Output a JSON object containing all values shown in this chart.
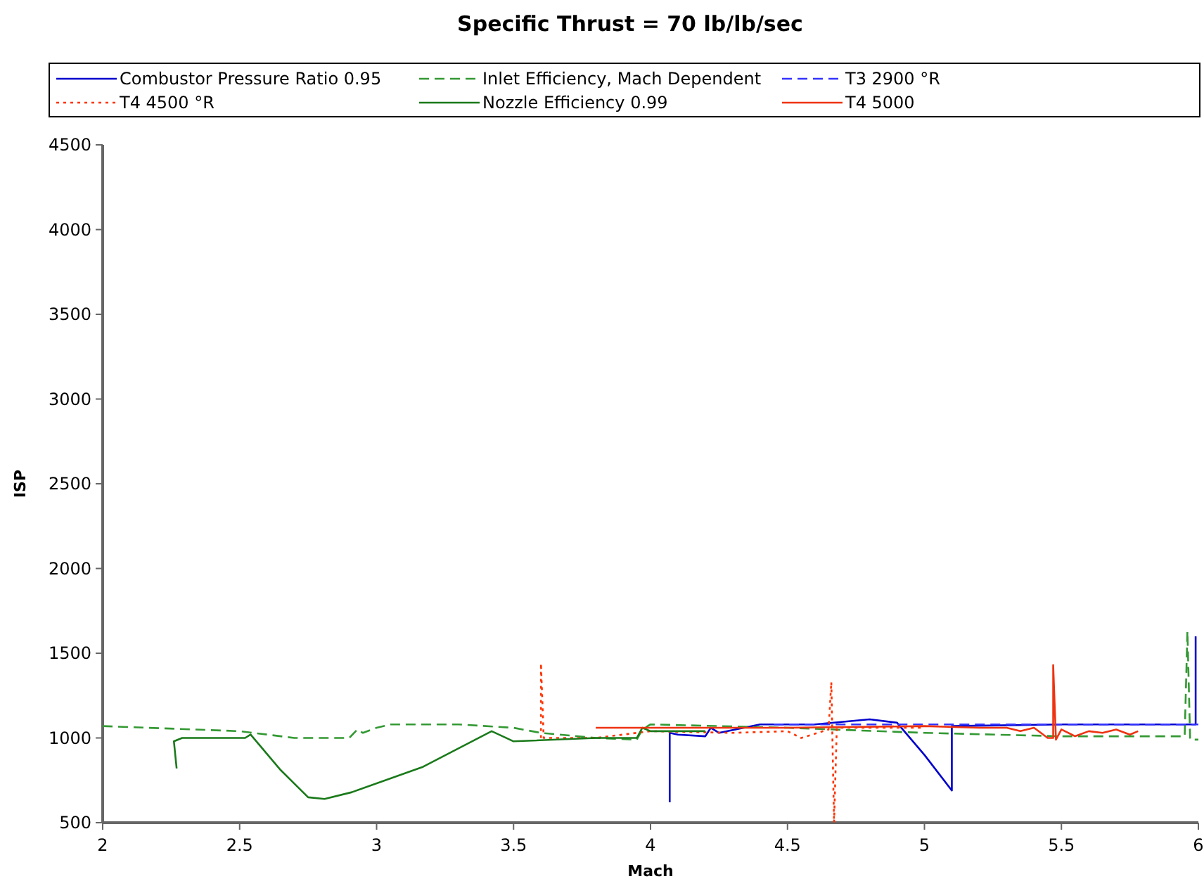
{
  "chart_data": {
    "type": "line",
    "title": "Specific Thrust = 70 lb/lb/sec",
    "xlabel": "Mach",
    "ylabel": "ISP",
    "xlim": [
      2,
      6
    ],
    "xticks": [
      2,
      2.5,
      3,
      3.5,
      4,
      4.5,
      5,
      5.5,
      6
    ],
    "ylim": [
      500,
      4500
    ],
    "yticks": [
      500,
      1000,
      1500,
      2000,
      2500,
      3000,
      3500,
      4000,
      4500
    ],
    "grid": false,
    "legend": "top",
    "series": [
      {
        "name": "Combustor Pressure Ratio 0.95",
        "color": "#0000cc",
        "line_style": "solid",
        "x": [
          4.07,
          4.07,
          4.1,
          4.2,
          4.22,
          4.25,
          4.4,
          4.6,
          4.8,
          4.9,
          5.0,
          5.1,
          5.1,
          5.5,
          5.99,
          5.99
        ],
        "values": [
          620,
          1030,
          1020,
          1010,
          1060,
          1030,
          1080,
          1080,
          1110,
          1090,
          900,
          690,
          1070,
          1080,
          1080,
          1600
        ]
      },
      {
        "name": "Inlet Efficiency, Mach Dependent",
        "color": "#339933",
        "line_style": "dashed",
        "x": [
          2.0,
          2.5,
          2.7,
          2.9,
          2.93,
          2.95,
          3.0,
          3.05,
          3.3,
          3.5,
          3.6,
          3.8,
          3.95,
          3.97,
          4.0,
          4.5,
          5.0,
          5.5,
          5.95,
          5.96,
          5.97,
          6.0
        ],
        "values": [
          1070,
          1040,
          1000,
          1000,
          1050,
          1030,
          1060,
          1080,
          1080,
          1060,
          1030,
          1000,
          990,
          1050,
          1080,
          1060,
          1030,
          1010,
          1010,
          1630,
          990,
          990
        ]
      },
      {
        "name": "T3 2900 °R",
        "color": "#3333ff",
        "line_style": "dashed",
        "x": [
          4.45,
          6.0
        ],
        "values": [
          1080,
          1080
        ]
      },
      {
        "name": "T4 4500 °R",
        "color": "#ff3300",
        "line_style": "dotted",
        "x": [
          3.6,
          3.6,
          3.61,
          3.8,
          4.0,
          4.3,
          4.5,
          4.55,
          4.65,
          4.66,
          4.67,
          4.68,
          5.0
        ],
        "values": [
          1000,
          1440,
          1000,
          1000,
          1040,
          1030,
          1040,
          1000,
          1050,
          1330,
          500,
          1060,
          1060
        ]
      },
      {
        "name": "Nozzle Efficiency 0.99",
        "color": "#1a7a1a",
        "line_style": "solid",
        "x": [
          2.27,
          2.26,
          2.29,
          2.52,
          2.54,
          2.65,
          2.75,
          2.81,
          2.91,
          3.17,
          3.42,
          3.5,
          3.8,
          3.95,
          3.97,
          4.0,
          4.2
        ],
        "values": [
          820,
          980,
          1000,
          1000,
          1020,
          810,
          650,
          640,
          680,
          830,
          1040,
          980,
          1000,
          1000,
          1060,
          1040,
          1040
        ]
      },
      {
        "name": "T4 5000",
        "color": "#ee3311",
        "line_style": "solid",
        "x": [
          3.8,
          4.1,
          4.5,
          5.0,
          5.2,
          5.3,
          5.35,
          5.4,
          5.45,
          5.47,
          5.47,
          5.48,
          5.5,
          5.55,
          5.6,
          5.65,
          5.7,
          5.75,
          5.78
        ],
        "values": [
          1060,
          1060,
          1060,
          1070,
          1060,
          1060,
          1040,
          1060,
          1000,
          1000,
          1430,
          990,
          1050,
          1010,
          1040,
          1030,
          1050,
          1020,
          1040
        ]
      }
    ]
  }
}
